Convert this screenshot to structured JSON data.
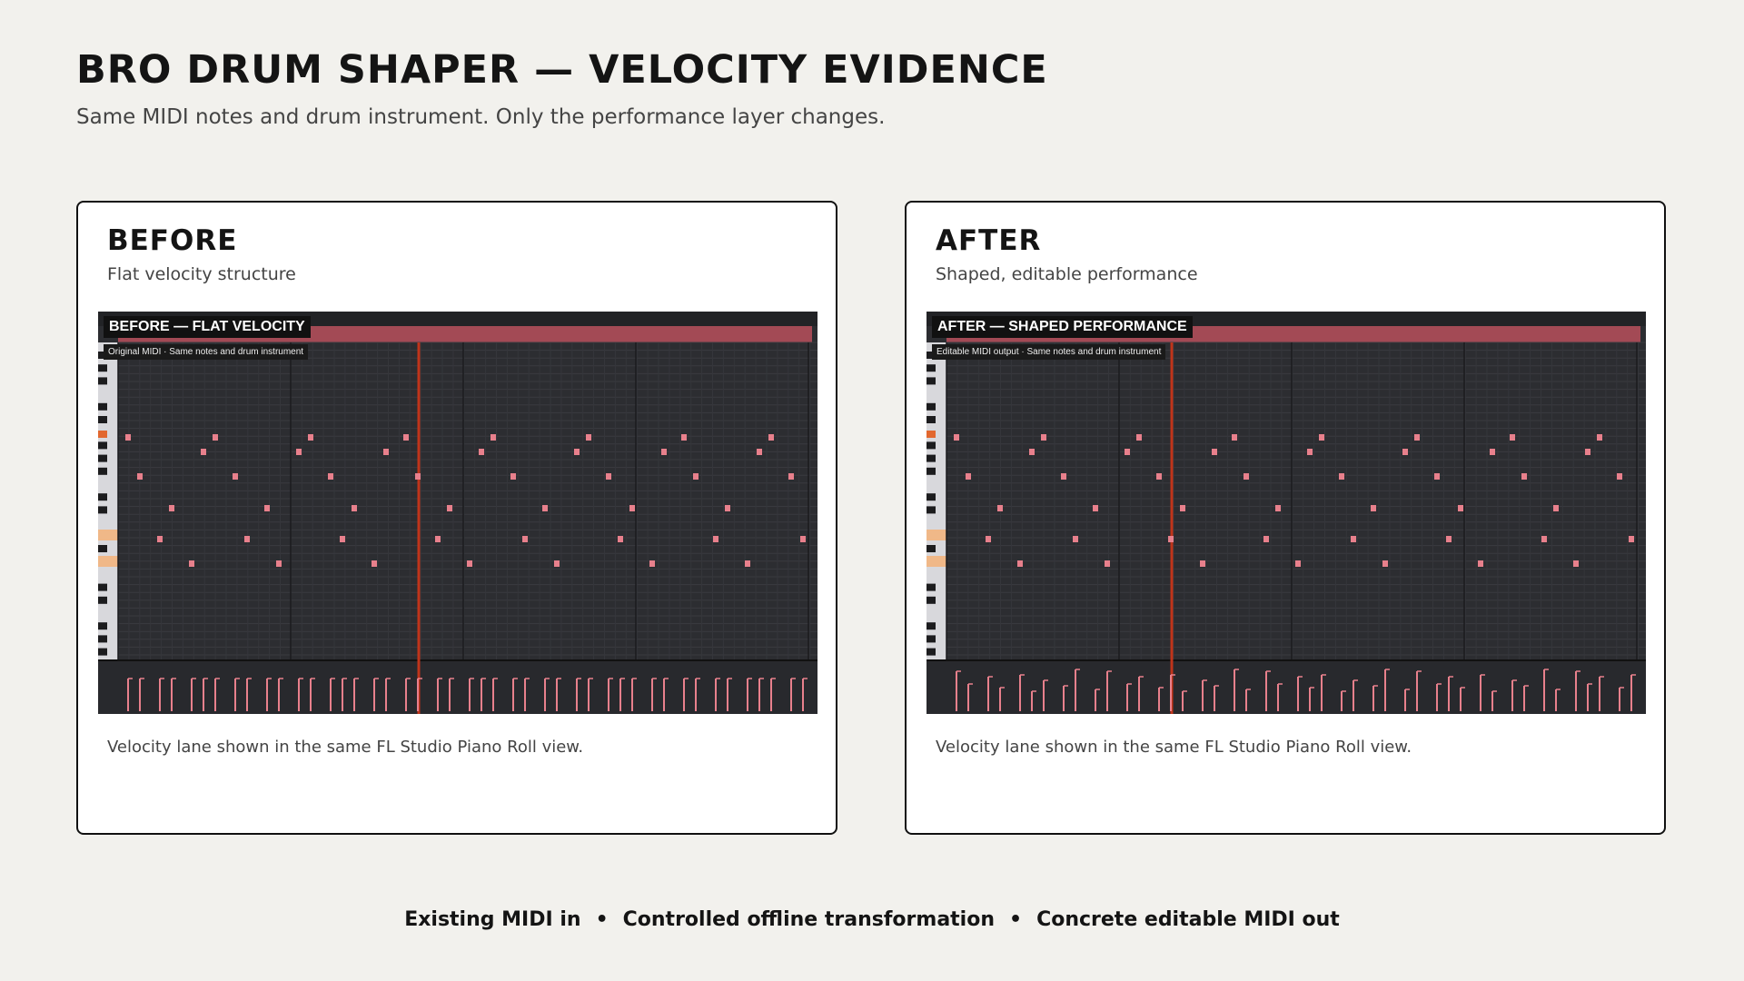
{
  "header": {
    "title": "BRO DRUM SHAPER — VELOCITY EVIDENCE",
    "subtitle": "Same MIDI notes and drum instrument. Only the performance layer changes."
  },
  "before": {
    "title": "BEFORE",
    "subtitle": "Flat velocity structure",
    "overlay_label": "BEFORE — FLAT VELOCITY",
    "overlay_sub": "Original MIDI · Same notes and drum instrument",
    "caption": "Velocity lane shown in the same FL Studio Piano Roll view.",
    "velocity_profile": "flat"
  },
  "after": {
    "title": "AFTER",
    "subtitle": "Shaped, editable performance",
    "overlay_label": "AFTER — SHAPED PERFORMANCE",
    "overlay_sub": "Editable MIDI output · Same notes and drum instrument",
    "caption": "Velocity lane shown in the same FL Studio Piano Roll view.",
    "velocity_profile": "shaped"
  },
  "footer": {
    "item1": "Existing MIDI in",
    "sep1": "•",
    "item2": "Controlled offline transformation",
    "sep2": "•",
    "item3": "Concrete editable MIDI out"
  },
  "colors": {
    "background": "#f2f1ed",
    "note": "#e8808c",
    "playhead": "#c0341a",
    "roll_bg": "#2c2d31"
  }
}
